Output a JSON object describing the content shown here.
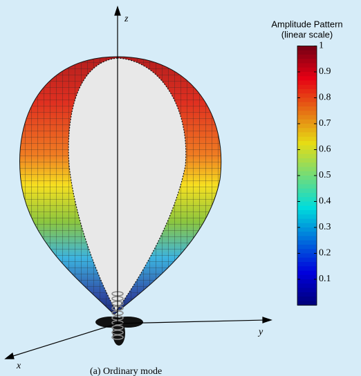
{
  "chart_data": {
    "type": "surface3d",
    "colorbar_title": [
      "Amplitude Pattern",
      "(linear scale)"
    ],
    "colormap": "jet",
    "ylim": [
      0,
      1
    ],
    "yticks": [
      0.1,
      0.2,
      0.3,
      0.4,
      0.5,
      0.6,
      0.7,
      0.8,
      0.9,
      1
    ],
    "x_label": "x",
    "y_label": "y",
    "z_label": "z",
    "caption": "(a) Ordinary mode"
  }
}
